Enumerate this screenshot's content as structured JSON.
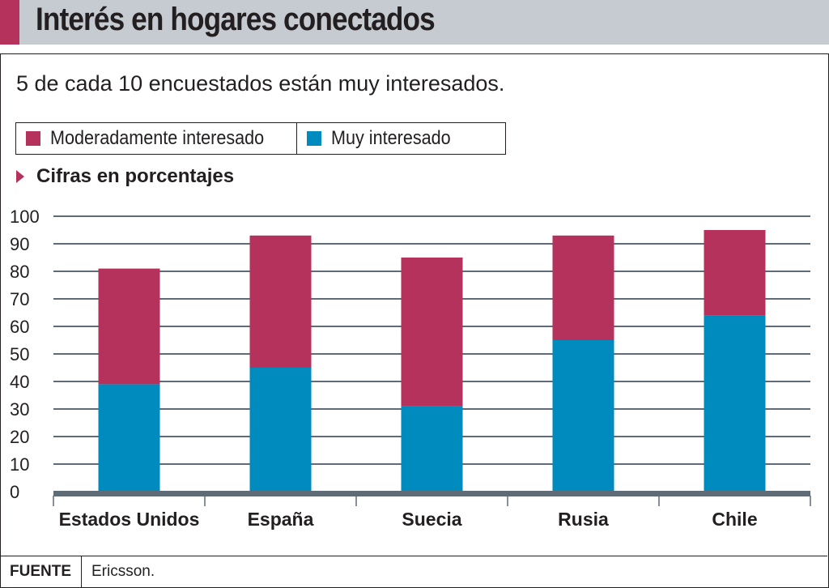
{
  "header": {
    "title": "Interés en hogares conectados"
  },
  "subtitle": "5 de cada 10 encuestados están muy interesados.",
  "unit_label": "Cifras en porcentajes",
  "footer": {
    "label": "FUENTE",
    "value": "Ericsson."
  },
  "colors": {
    "moderado": "#b5325c",
    "muy": "#008bbf",
    "grid": "#5f6b77",
    "header_bg": "#c5cbd1"
  },
  "chart_data": {
    "type": "bar",
    "stacked": true,
    "title": "Interés en hogares conectados",
    "subtitle": "5 de cada 10 encuestados están muy interesados.",
    "ylabel": "Cifras en porcentajes",
    "xlabel": "",
    "categories": [
      "Estados Unidos",
      "España",
      "Suecia",
      "Rusia",
      "Chile"
    ],
    "series": [
      {
        "name": "Muy interesado",
        "color": "#008bbf",
        "values": [
          39,
          45,
          31,
          55,
          64
        ]
      },
      {
        "name": "Moderadamente interesado",
        "color": "#b5325c",
        "values": [
          42,
          48,
          54,
          38,
          31
        ]
      }
    ],
    "legend": [
      "Moderadamente interesado",
      "Muy interesado"
    ],
    "legend_position": "top-left",
    "ylim": [
      0,
      100
    ],
    "yticks": [
      0,
      10,
      20,
      30,
      40,
      50,
      60,
      70,
      80,
      90,
      100
    ],
    "grid": true
  }
}
